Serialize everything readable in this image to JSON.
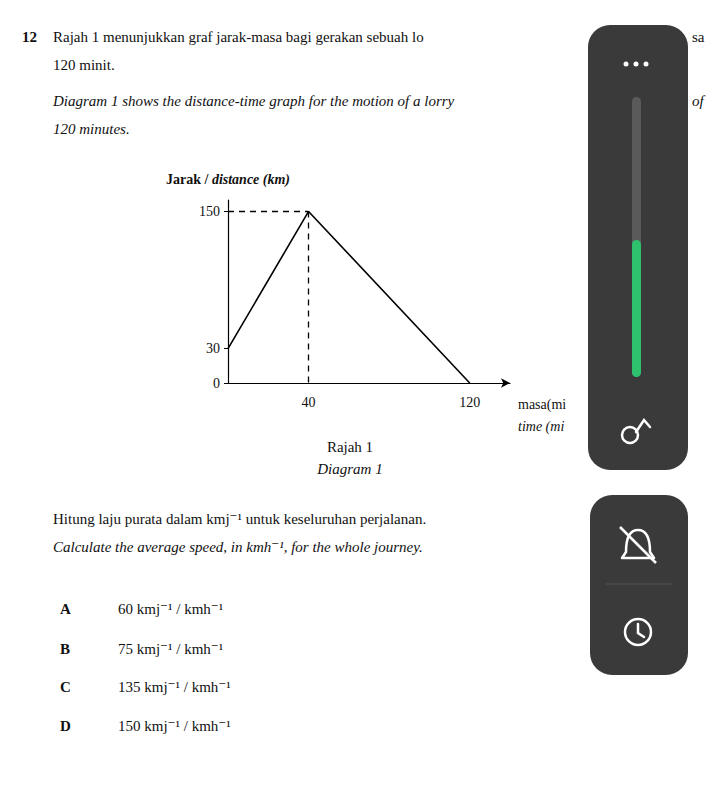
{
  "question": {
    "number": "12",
    "text_ms": [
      "Rajah 1 menunjukkan graf jarak-masa bagi gerakan sebuah lo",
      "sa",
      "120 minit."
    ],
    "text_en": [
      "Diagram 1 shows the distance-time graph for the motion of a lorry",
      "of",
      "120 minutes."
    ]
  },
  "chart_data": {
    "type": "line",
    "x": [
      0,
      40,
      120
    ],
    "values": [
      30,
      150,
      0
    ],
    "xlim": [
      0,
      140
    ],
    "xticks": [
      40,
      120
    ],
    "ylim": [
      0,
      160
    ],
    "yticks": [
      0,
      30,
      150
    ],
    "ylabel": "Jarak / distance (km)",
    "xlabel": [
      "masa(mi",
      "time (mi"
    ],
    "color": "#000000",
    "marker": "none",
    "line_style": "solid",
    "grid": false
  },
  "caption": [
    "Rajah 1",
    "Diagram 1"
  ],
  "prompt": [
    "Hitung laju purata dalam kmj⁻¹ untuk keseluruhan perjalanan.",
    "Calculate the average speed, in kmh⁻¹, for the whole journey."
  ],
  "options": [
    {
      "letter": "A",
      "text": "60 kmj⁻¹ / kmh⁻¹"
    },
    {
      "letter": "B",
      "text": "75 kmj⁻¹ / kmh⁻¹"
    },
    {
      "letter": "C",
      "text": "135 kmj⁻¹ / kmh⁻¹"
    },
    {
      "letter": "D",
      "text": "150 kmj⁻¹ / kmh⁻¹"
    }
  ]
}
